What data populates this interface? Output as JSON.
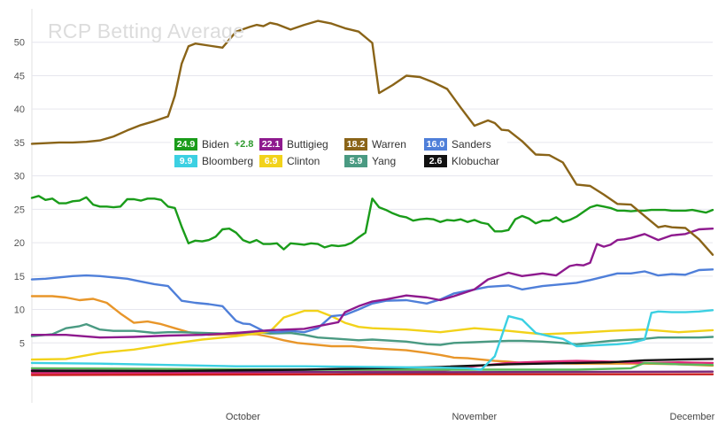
{
  "title": "RCP Betting Average",
  "chart_data": {
    "type": "line",
    "ylim": [
      0,
      55
    ],
    "yticks": [
      5,
      10,
      15,
      20,
      25,
      30,
      35,
      40,
      45,
      50
    ],
    "xlim": [
      0,
      100
    ],
    "xticks": [
      {
        "x": 31,
        "label": "October"
      },
      {
        "x": 65,
        "label": "November"
      },
      {
        "x": 97,
        "label": "December"
      }
    ],
    "grid": true,
    "legend_placement": "center-left",
    "series": [
      {
        "name": "Biden",
        "value": "24.9",
        "change": "+2.8",
        "color": "#1a9c1a",
        "x": [
          0,
          1,
          2,
          3,
          4,
          5,
          6,
          7,
          8,
          9,
          10,
          11,
          12,
          13,
          14,
          15,
          16,
          17,
          18,
          19,
          20,
          21,
          22,
          23,
          24,
          25,
          26,
          27,
          28,
          29,
          30,
          31,
          32,
          33,
          34,
          35,
          36,
          37,
          38,
          39,
          40,
          41,
          42,
          43,
          44,
          45,
          46,
          47,
          48,
          49,
          50,
          51,
          52,
          53,
          54,
          55,
          56,
          57,
          58,
          59,
          60,
          61,
          62,
          63,
          64,
          65,
          66,
          67,
          68,
          69,
          70,
          71,
          72,
          73,
          74,
          75,
          76,
          77,
          78,
          79,
          80,
          81,
          82,
          83,
          84,
          85,
          86,
          87,
          88,
          89,
          90,
          91,
          92,
          93,
          94,
          95,
          96,
          97,
          98,
          99,
          100
        ],
        "values": [
          26.7,
          27.0,
          26.4,
          26.6,
          25.9,
          25.9,
          26.2,
          26.3,
          26.8,
          25.7,
          25.4,
          25.4,
          25.3,
          25.4,
          26.5,
          26.5,
          26.3,
          26.6,
          26.6,
          26.4,
          25.4,
          25.2,
          22.4,
          19.9,
          20.3,
          20.2,
          20.4,
          20.9,
          22.0,
          22.1,
          21.5,
          20.4,
          20.0,
          20.4,
          19.8,
          19.8,
          19.9,
          19.0,
          19.9,
          19.8,
          19.7,
          19.9,
          19.8,
          19.3,
          19.6,
          19.5,
          19.6,
          20.0,
          20.8,
          21.5,
          26.6,
          25.3,
          24.9,
          24.4,
          24.0,
          23.8,
          23.3,
          23.5,
          23.6,
          23.5,
          23.1,
          23.4,
          23.3,
          23.5,
          23.1,
          23.4,
          23.0,
          22.8,
          21.7,
          21.7,
          21.9,
          23.5,
          24.0,
          23.6,
          22.9,
          23.3,
          23.3,
          23.8,
          23.1,
          23.4,
          23.9,
          24.6,
          25.3,
          25.6,
          25.4,
          25.2,
          24.8,
          24.8,
          24.7,
          24.8,
          24.8,
          24.9,
          24.9,
          24.9,
          24.8,
          24.8,
          24.8,
          24.9,
          24.7,
          24.5,
          24.9
        ]
      },
      {
        "name": "Buttigieg",
        "value": "22.1",
        "color": "#8e1a8e",
        "x": [
          0,
          5,
          10,
          15,
          20,
          25,
          30,
          35,
          40,
          45,
          46,
          48,
          50,
          52,
          55,
          58,
          60,
          62,
          65,
          67,
          70,
          72,
          75,
          77,
          79,
          80,
          81,
          82,
          83,
          84,
          85,
          86,
          87,
          88,
          90,
          92,
          94,
          96,
          98,
          100
        ],
        "values": [
          6.2,
          6.2,
          5.8,
          5.9,
          6.1,
          6.2,
          6.5,
          6.9,
          7.1,
          8.1,
          9.6,
          10.5,
          11.2,
          11.5,
          12.1,
          11.8,
          11.4,
          12.0,
          13.0,
          14.5,
          15.5,
          15.0,
          15.4,
          15.1,
          16.5,
          16.7,
          16.6,
          17.0,
          19.8,
          19.4,
          19.7,
          20.4,
          20.5,
          20.7,
          21.3,
          20.4,
          21.1,
          21.3,
          22.0,
          22.1
        ]
      },
      {
        "name": "Warren",
        "value": "18.2",
        "color": "#8a6418",
        "x": [
          0,
          2,
          4,
          6,
          8,
          10,
          12,
          14,
          16,
          18,
          20,
          21,
          22,
          23,
          24,
          26,
          28,
          30,
          32,
          33,
          34,
          35,
          36,
          38,
          40,
          42,
          44,
          46,
          48,
          50,
          51,
          53,
          55,
          57,
          59,
          61,
          63,
          65,
          67,
          68,
          69,
          70,
          72,
          74,
          76,
          78,
          80,
          82,
          84,
          86,
          88,
          90,
          92,
          93,
          94,
          96,
          98,
          100
        ],
        "values": [
          34.8,
          34.9,
          35.0,
          35.0,
          35.1,
          35.3,
          35.9,
          36.8,
          37.6,
          38.2,
          38.9,
          42.0,
          46.8,
          49.4,
          49.8,
          49.5,
          49.2,
          51.6,
          52.3,
          52.6,
          52.4,
          52.9,
          52.7,
          51.9,
          52.6,
          53.2,
          52.8,
          52.1,
          51.6,
          49.9,
          42.4,
          43.6,
          45.0,
          44.8,
          44.0,
          43.0,
          40.2,
          37.5,
          38.3,
          37.9,
          36.9,
          36.8,
          35.2,
          33.2,
          33.1,
          32.0,
          28.7,
          28.5,
          27.2,
          25.8,
          25.7,
          24.0,
          22.3,
          22.5,
          22.3,
          22.2,
          20.5,
          18.2
        ]
      },
      {
        "name": "Sanders",
        "value": "16.0",
        "color": "#4f7fd9",
        "x": [
          0,
          2,
          4,
          6,
          8,
          10,
          12,
          14,
          16,
          18,
          20,
          22,
          24,
          26,
          28,
          30,
          31,
          32,
          34,
          36,
          38,
          40,
          42,
          44,
          46,
          48,
          50,
          52,
          55,
          58,
          60,
          62,
          65,
          67,
          70,
          72,
          75,
          78,
          80,
          82,
          84,
          86,
          88,
          90,
          92,
          94,
          96,
          98,
          100
        ],
        "values": [
          14.5,
          14.6,
          14.8,
          15.0,
          15.1,
          15.0,
          14.8,
          14.6,
          14.2,
          13.8,
          13.5,
          11.3,
          11.0,
          10.8,
          10.5,
          8.3,
          7.9,
          7.8,
          6.8,
          6.6,
          6.8,
          6.6,
          7.2,
          9.0,
          9.2,
          10.0,
          10.9,
          11.3,
          11.4,
          10.9,
          11.5,
          12.4,
          13.0,
          13.4,
          13.6,
          13.0,
          13.5,
          13.8,
          14.0,
          14.4,
          14.9,
          15.4,
          15.4,
          15.7,
          15.1,
          15.3,
          15.2,
          15.9,
          16.0
        ]
      },
      {
        "name": "Bloomberg",
        "value": "9.9",
        "color": "#3cd0e2",
        "x": [
          0,
          10,
          20,
          30,
          40,
          50,
          60,
          64,
          66,
          68,
          70,
          72,
          74,
          76,
          78,
          80,
          82,
          84,
          86,
          88,
          90,
          91,
          92,
          94,
          96,
          98,
          100
        ],
        "values": [
          2.0,
          1.9,
          1.7,
          1.5,
          1.5,
          1.4,
          1.3,
          1.2,
          1.0,
          3.0,
          9.0,
          8.5,
          6.5,
          6.0,
          5.6,
          4.5,
          4.6,
          4.7,
          4.8,
          5.0,
          5.5,
          9.5,
          9.7,
          9.6,
          9.6,
          9.7,
          9.9
        ]
      },
      {
        "name": "Clinton",
        "value": "6.9",
        "color": "#f2d21a",
        "x": [
          0,
          5,
          10,
          15,
          20,
          25,
          30,
          35,
          37,
          40,
          42,
          44,
          46,
          48,
          50,
          55,
          60,
          65,
          70,
          75,
          80,
          85,
          90,
          95,
          100
        ],
        "values": [
          2.5,
          2.6,
          3.5,
          4.0,
          4.8,
          5.5,
          6.0,
          6.7,
          8.8,
          9.8,
          9.8,
          9.0,
          8.0,
          7.4,
          7.2,
          7.0,
          6.6,
          7.2,
          6.8,
          6.3,
          6.5,
          6.8,
          7.0,
          6.6,
          6.9
        ]
      },
      {
        "name": "Yang",
        "value": "5.9",
        "color": "#4a9a82",
        "x": [
          0,
          3,
          5,
          7,
          8,
          10,
          12,
          15,
          18,
          20,
          22,
          25,
          28,
          30,
          33,
          35,
          38,
          40,
          42,
          45,
          48,
          50,
          55,
          58,
          60,
          62,
          65,
          67,
          70,
          72,
          75,
          78,
          80,
          82,
          85,
          88,
          90,
          92,
          95,
          98,
          100
        ],
        "values": [
          6.0,
          6.3,
          7.2,
          7.5,
          7.8,
          7.0,
          6.8,
          6.8,
          6.5,
          6.6,
          6.6,
          6.5,
          6.4,
          6.5,
          6.6,
          6.4,
          6.5,
          6.2,
          5.8,
          5.6,
          5.4,
          5.5,
          5.2,
          4.8,
          4.7,
          5.0,
          5.1,
          5.2,
          5.3,
          5.3,
          5.2,
          5.0,
          4.8,
          5.0,
          5.3,
          5.5,
          5.6,
          5.8,
          5.8,
          5.8,
          5.9
        ]
      },
      {
        "name": "Klobuchar",
        "value": "2.6",
        "color": "#111111",
        "x": [
          0,
          20,
          40,
          50,
          60,
          70,
          80,
          85,
          90,
          95,
          100
        ],
        "values": [
          0.8,
          0.8,
          1.0,
          1.2,
          1.4,
          1.8,
          2.0,
          2.1,
          2.4,
          2.5,
          2.6
        ]
      }
    ],
    "unlabeled_series": [
      {
        "color": "#e8962a",
        "x": [
          0,
          3,
          5,
          7,
          9,
          11,
          13,
          15,
          17,
          19,
          21,
          23,
          26,
          30,
          33,
          35,
          37,
          39,
          41,
          44,
          47,
          50,
          55,
          58,
          60,
          62,
          64,
          66,
          68,
          70,
          72,
          75,
          80,
          85,
          90,
          95,
          100
        ],
        "values": [
          12.0,
          12.0,
          11.8,
          11.4,
          11.6,
          11.0,
          9.4,
          8.0,
          8.2,
          7.8,
          7.2,
          6.6,
          6.2,
          6.3,
          6.3,
          5.9,
          5.4,
          5.0,
          4.8,
          4.5,
          4.5,
          4.2,
          3.9,
          3.5,
          3.2,
          2.8,
          2.7,
          2.5,
          2.3,
          2.2,
          2.0,
          2.0,
          1.9,
          1.9,
          1.9,
          1.8,
          1.6
        ]
      },
      {
        "color": "#e02a7a",
        "x": [
          0,
          20,
          40,
          60,
          65,
          70,
          75,
          80,
          85,
          90,
          95,
          100
        ],
        "values": [
          0.5,
          0.5,
          0.6,
          0.8,
          1.5,
          2.0,
          2.2,
          2.3,
          2.2,
          2.0,
          2.1,
          2.0
        ]
      },
      {
        "color": "#5ab85a",
        "x": [
          0,
          20,
          40,
          60,
          70,
          80,
          88,
          90,
          95,
          100
        ],
        "values": [
          1.2,
          1.1,
          1.0,
          1.0,
          1.0,
          1.0,
          1.2,
          2.0,
          1.8,
          1.7
        ]
      },
      {
        "color": "#c81e1e",
        "x": [
          0,
          50,
          100
        ],
        "values": [
          0.2,
          0.3,
          0.3
        ]
      },
      {
        "color": "#7a2a7a",
        "x": [
          0,
          50,
          100
        ],
        "values": [
          0.9,
          0.6,
          0.7
        ]
      }
    ]
  }
}
